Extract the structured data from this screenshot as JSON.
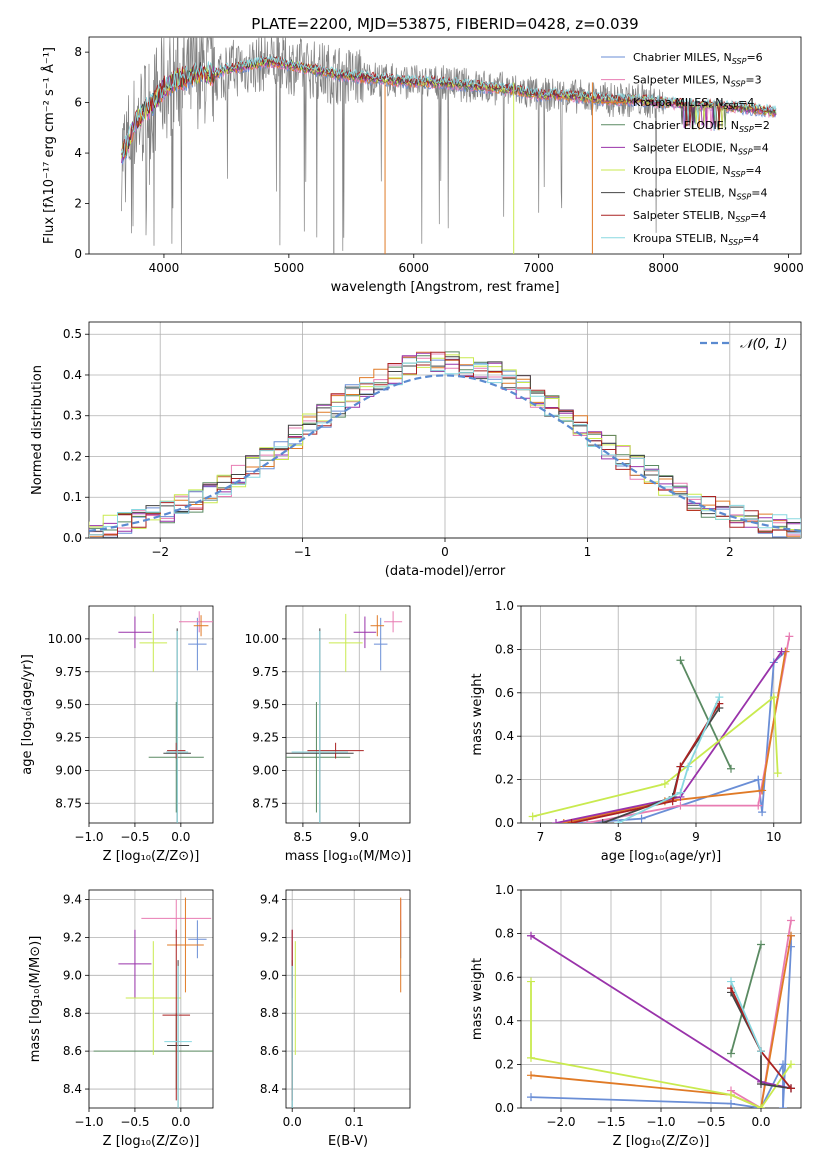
{
  "colors": [
    "#6a8ed6",
    "#e87cb2",
    "#e07a26",
    "#5a8a62",
    "#9933aa",
    "#c9ea4f",
    "#444444",
    "#aa2222",
    "#88d8e0"
  ],
  "chart_data": [
    {
      "type": "line",
      "title": "PLATE=2200, MJD=53875, FIBERID=0428, z=0.039",
      "xlabel": "wavelength [Angstrom, rest frame]",
      "ylabel": "Flux [fλ10⁻¹⁷ erg cm⁻² s⁻¹ Å⁻¹]",
      "xlim": [
        3400,
        9100
      ],
      "ylim": [
        0,
        8.6
      ],
      "xticks": [
        "4000",
        "5000",
        "6000",
        "7000",
        "8000",
        "9000"
      ],
      "yticks": [
        "0",
        "2",
        "4",
        "6",
        "8"
      ],
      "data_color": "#808080",
      "legend": [
        {
          "label": "Chabrier MILES, N",
          "sub": "SSP",
          "suffix": "=6"
        },
        {
          "label": "Salpeter MILES, N",
          "sub": "SSP",
          "suffix": "=3"
        },
        {
          "label": "Kroupa MILES, N",
          "sub": "SSP",
          "suffix": "=4"
        },
        {
          "label": "Chabrier ELODIE, N",
          "sub": "SSP",
          "suffix": "=2"
        },
        {
          "label": "Salpeter ELODIE, N",
          "sub": "SSP",
          "suffix": "=4"
        },
        {
          "label": "Kroupa ELODIE, N",
          "sub": "SSP",
          "suffix": "=4"
        },
        {
          "label": "Chabrier STELIB, N",
          "sub": "SSP",
          "suffix": "=4"
        },
        {
          "label": "Salpeter STELIB, N",
          "sub": "SSP",
          "suffix": "=4"
        },
        {
          "label": "Kroupa STELIB, N",
          "sub": "SSP",
          "suffix": "=4"
        }
      ],
      "legend_position": "upper-right",
      "continuum": {
        "x": [
          3650,
          3700,
          3750,
          3800,
          3900,
          4000,
          4100,
          4200,
          4300,
          4400,
          4500,
          4600,
          4700,
          4800,
          4900,
          5000,
          5200,
          5400,
          5600,
          5800,
          6000,
          6200,
          6400,
          6600,
          6800,
          7000,
          7200,
          7400,
          7600,
          7800,
          8000,
          8200,
          8400,
          8600,
          8800,
          8900
        ],
        "y": [
          3.8,
          4.3,
          4.9,
          5.4,
          5.9,
          6.6,
          6.9,
          7.0,
          7.2,
          7.1,
          7.3,
          7.4,
          7.5,
          7.6,
          7.6,
          7.5,
          7.3,
          7.1,
          7.0,
          6.9,
          6.8,
          6.8,
          6.7,
          6.6,
          6.5,
          6.3,
          6.3,
          6.2,
          6.1,
          6.1,
          6.0,
          5.9,
          5.9,
          5.8,
          5.7,
          5.6
        ]
      }
    },
    {
      "type": "line",
      "xlabel": "(data-model)/error",
      "ylabel": "Normed distribution",
      "xlim": [
        -2.5,
        2.5
      ],
      "ylim": [
        0,
        0.53
      ],
      "xticks": [
        "−2",
        "−1",
        "0",
        "1",
        "2"
      ],
      "yticks": [
        "0.0",
        "0.1",
        "0.2",
        "0.3",
        "0.4",
        "0.5"
      ],
      "legend": [
        {
          "label": "𝒩(0, 1)"
        }
      ],
      "legend_position": "upper-right",
      "bin_width": 0.1
    },
    {
      "type": "scatter",
      "xlabel": "Z [log₁₀(Z/Z⊙)]",
      "ylabel": "age  [log₁₀(age/yr)]",
      "xlim": [
        -1.0,
        0.35
      ],
      "ylim": [
        8.6,
        10.25
      ],
      "xticks": [
        "−1.0",
        "−0.5",
        "0.0"
      ],
      "yticks": [
        "8.75",
        "9.00",
        "9.25",
        "9.50",
        "9.75",
        "10.00"
      ],
      "points": [
        {
          "x": 0.18,
          "xe": 0.1,
          "y": 9.96,
          "ye": 0.2
        },
        {
          "x": 0.2,
          "xe": 0.22,
          "y": 10.13,
          "ye": 0.08
        },
        {
          "x": 0.22,
          "xe": 0.08,
          "y": 10.1,
          "ye": 0.08
        },
        {
          "x": -0.05,
          "xe": 0.3,
          "y": 9.1,
          "ye": 0.42
        },
        {
          "x": -0.5,
          "xe": 0.18,
          "y": 10.05,
          "ye": 0.12
        },
        {
          "x": -0.3,
          "xe": 0.15,
          "y": 9.97,
          "ye": 0.22
        },
        {
          "x": -0.04,
          "xe": 0.15,
          "y": 9.13,
          "ye": 0.95
        },
        {
          "x": -0.05,
          "xe": 0.1,
          "y": 9.15,
          "ye": 0.06
        },
        {
          "x": -0.04,
          "xe": 0.12,
          "y": 9.14,
          "ye": 0.92
        }
      ]
    },
    {
      "type": "scatter",
      "xlabel": "mass [log₁₀(M/M⊙)]",
      "xlim": [
        8.35,
        9.45
      ],
      "ylim": [
        8.6,
        10.25
      ],
      "xticks": [
        "8.5",
        "9.0"
      ],
      "yticks": [
        "8.75",
        "9.00",
        "9.25",
        "9.50",
        "9.75",
        "10.00"
      ],
      "points": [
        {
          "x": 9.19,
          "xe": 0.06,
          "y": 9.96,
          "ye": 0.2
        },
        {
          "x": 9.3,
          "xe": 0.08,
          "y": 10.13,
          "ye": 0.08
        },
        {
          "x": 9.16,
          "xe": 0.06,
          "y": 10.1,
          "ye": 0.08
        },
        {
          "x": 8.62,
          "xe": 0.3,
          "y": 9.1,
          "ye": 0.42
        },
        {
          "x": 9.05,
          "xe": 0.1,
          "y": 10.05,
          "ye": 0.12
        },
        {
          "x": 8.88,
          "xe": 0.15,
          "y": 9.97,
          "ye": 0.22
        },
        {
          "x": 8.65,
          "xe": 0.3,
          "y": 9.13,
          "ye": 0.95
        },
        {
          "x": 8.79,
          "xe": 0.25,
          "y": 9.15,
          "ye": 0.06
        },
        {
          "x": 8.65,
          "xe": 0.25,
          "y": 9.14,
          "ye": 0.92
        }
      ]
    },
    {
      "type": "line",
      "xlabel": "age  [log₁₀(age/yr)]",
      "ylabel": "mass weight",
      "xlim": [
        6.75,
        10.35
      ],
      "ylim": [
        0,
        1.0
      ],
      "xticks": [
        "7",
        "8",
        "9",
        "10"
      ],
      "yticks": [
        "0.0",
        "0.2",
        "0.4",
        "0.6",
        "0.8",
        "1.0"
      ],
      "series": [
        {
          "x": [
            7.5,
            8.3,
            9.8,
            9.85,
            10.0,
            10.15
          ],
          "y": [
            0,
            0.02,
            0.2,
            0.05,
            0.74,
            0.79
          ]
        },
        {
          "x": [
            7.6,
            8.8,
            9.8,
            10.2
          ],
          "y": [
            0,
            0.08,
            0.08,
            0.86
          ]
        },
        {
          "x": [
            7.3,
            8.6,
            9.85,
            10.15
          ],
          "y": [
            0,
            0.1,
            0.15,
            0.79
          ]
        },
        {
          "x": [
            8.8,
            9.45
          ],
          "y": [
            0.75,
            0.25
          ]
        },
        {
          "x": [
            7.2,
            8.8,
            10.1
          ],
          "y": [
            0,
            0.12,
            0.79
          ]
        },
        {
          "x": [
            6.9,
            8.6,
            10.0,
            10.05
          ],
          "y": [
            0.03,
            0.18,
            0.58,
            0.23
          ]
        },
        {
          "x": [
            7.8,
            8.7,
            8.8,
            9.3
          ],
          "y": [
            0,
            0.12,
            0.26,
            0.53
          ]
        },
        {
          "x": [
            7.4,
            8.7,
            8.8,
            9.3
          ],
          "y": [
            0,
            0.1,
            0.26,
            0.55
          ]
        },
        {
          "x": [
            8.0,
            8.8,
            8.9,
            9.3
          ],
          "y": [
            0,
            0.14,
            0.26,
            0.58
          ]
        }
      ]
    },
    {
      "type": "scatter",
      "xlabel": "Z [log₁₀(Z/Z⊙)]",
      "ylabel": "mass [log₁₀(M/M⊙)]",
      "xlim": [
        -1.0,
        0.35
      ],
      "ylim": [
        8.3,
        9.45
      ],
      "xticks": [
        "−1.0",
        "−0.5",
        "0.0"
      ],
      "yticks": [
        "8.4",
        "8.6",
        "8.8",
        "9.0",
        "9.2",
        "9.4"
      ],
      "points": [
        {
          "x": 0.18,
          "xe": 0.1,
          "y": 9.19,
          "ye": 0.1
        },
        {
          "x": -0.05,
          "xe": 0.38,
          "y": 9.3,
          "ye": 0.1
        },
        {
          "x": 0.05,
          "xe": 0.2,
          "y": 9.16,
          "ye": 0.25
        },
        {
          "x": -0.05,
          "xe": 0.9,
          "y": 8.6,
          "ye": 0.2
        },
        {
          "x": -0.5,
          "xe": 0.18,
          "y": 9.06,
          "ye": 0.18
        },
        {
          "x": -0.3,
          "xe": 0.3,
          "y": 8.88,
          "ye": 0.3
        },
        {
          "x": -0.03,
          "xe": 0.12,
          "y": 8.63,
          "ye": 0.45
        },
        {
          "x": -0.05,
          "xe": 0.15,
          "y": 8.79,
          "ye": 0.45
        },
        {
          "x": -0.03,
          "xe": 0.15,
          "y": 8.65,
          "ye": 0.4
        }
      ]
    },
    {
      "type": "scatter",
      "xlabel": "E(B-V)",
      "xlim": [
        -0.01,
        0.19
      ],
      "ylim": [
        8.3,
        9.45
      ],
      "xticks": [
        "0.0",
        "0.1"
      ],
      "yticks": [
        "8.4",
        "8.6",
        "8.8",
        "9.0",
        "9.2",
        "9.4"
      ],
      "points": [
        {
          "x": 0.175,
          "y": 9.19,
          "ye": 0.1
        },
        {
          "x": 0.175,
          "y": 9.3,
          "ye": 0.1
        },
        {
          "x": 0.175,
          "y": 9.16,
          "ye": 0.25
        },
        {
          "x": 0.0,
          "y": 8.6,
          "ye": 0.2
        },
        {
          "x": 0.0,
          "y": 9.06,
          "ye": 0.18
        },
        {
          "x": 0.005,
          "y": 8.88,
          "ye": 0.3
        },
        {
          "x": 0.0,
          "y": 8.63,
          "ye": 0.45
        },
        {
          "x": 0.0,
          "y": 8.79,
          "ye": 0.45
        },
        {
          "x": 0.0,
          "y": 8.65,
          "ye": 0.4
        }
      ]
    },
    {
      "type": "line",
      "xlabel": "Z [log₁₀(Z/Z⊙)]",
      "ylabel": "mass weight",
      "xlim": [
        -2.4,
        0.4
      ],
      "ylim": [
        0,
        1.0
      ],
      "xticks": [
        "−2.0",
        "−1.5",
        "−1.0",
        "−0.5",
        "0.0"
      ],
      "yticks": [
        "0.0",
        "0.2",
        "0.4",
        "0.6",
        "0.8",
        "1.0"
      ],
      "series": [
        {
          "x": [
            -2.3,
            -0.3,
            0.0,
            0.22,
            0.22,
            0.3,
            0.3
          ],
          "y": [
            0.05,
            0.02,
            0.0,
            0.2,
            0.0,
            0.74,
            0.79
          ]
        },
        {
          "x": [
            -0.3,
            0.0,
            0.3
          ],
          "y": [
            0.08,
            0.0,
            0.86
          ]
        },
        {
          "x": [
            -2.3,
            -0.3,
            0.0,
            0.3
          ],
          "y": [
            0.15,
            0.06,
            0.0,
            0.79
          ]
        },
        {
          "x": [
            -0.3,
            0.0
          ],
          "y": [
            0.25,
            0.75
          ]
        },
        {
          "x": [
            -2.3,
            0.0,
            0.3
          ],
          "y": [
            0.79,
            0.12,
            0.09
          ]
        },
        {
          "x": [
            -2.3,
            -2.3,
            -0.3,
            0.0,
            0.3
          ],
          "y": [
            0.58,
            0.23,
            0.06,
            0.0,
            0.2
          ]
        },
        {
          "x": [
            -0.3,
            0.0,
            0.0,
            0.3
          ],
          "y": [
            0.53,
            0.26,
            0.11,
            0.09
          ]
        },
        {
          "x": [
            -0.3,
            0.0,
            0.3
          ],
          "y": [
            0.55,
            0.26,
            0.09
          ]
        },
        {
          "x": [
            -0.3,
            0.0
          ],
          "y": [
            0.58,
            0.26
          ]
        }
      ]
    }
  ]
}
